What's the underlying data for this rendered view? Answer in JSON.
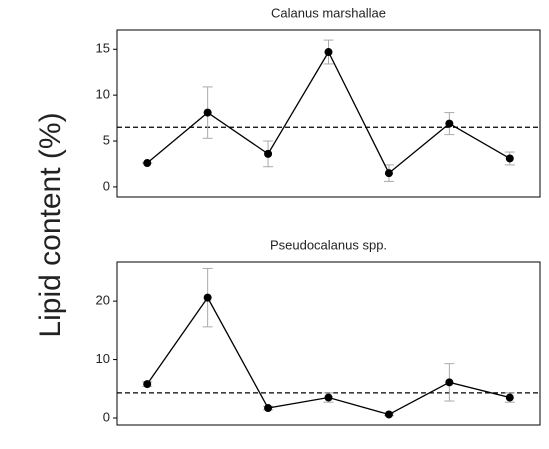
{
  "y_label": "Lipid content (%)",
  "chart_data": [
    {
      "type": "line",
      "title": "Calanus marshallae",
      "categories": [
        null,
        null,
        null,
        null,
        null,
        null,
        null
      ],
      "values": [
        2.6,
        8.1,
        3.6,
        14.7,
        1.5,
        6.9,
        3.1
      ],
      "errors": [
        0,
        2.8,
        1.4,
        1.3,
        0.9,
        1.2,
        0.7
      ],
      "mean_line": 6.5,
      "color": "#000000",
      "error_color": "#aaaaaa",
      "ylim": [
        -1.1,
        17.1
      ],
      "yticks": [
        0,
        5,
        10,
        15
      ]
    },
    {
      "type": "line",
      "title": "Pseudocalanus spp.",
      "categories": [
        null,
        null,
        null,
        null,
        null,
        null,
        null
      ],
      "values": [
        5.8,
        20.6,
        1.7,
        3.5,
        0.6,
        6.1,
        3.5
      ],
      "errors": [
        0.4,
        5,
        0.3,
        0.8,
        0.2,
        3.2,
        0.8
      ],
      "mean_line": 4.3,
      "color": "#000000",
      "error_color": "#aaaaaa",
      "ylim": [
        -1.2,
        26.7
      ],
      "yticks": [
        0,
        10,
        20
      ]
    }
  ]
}
